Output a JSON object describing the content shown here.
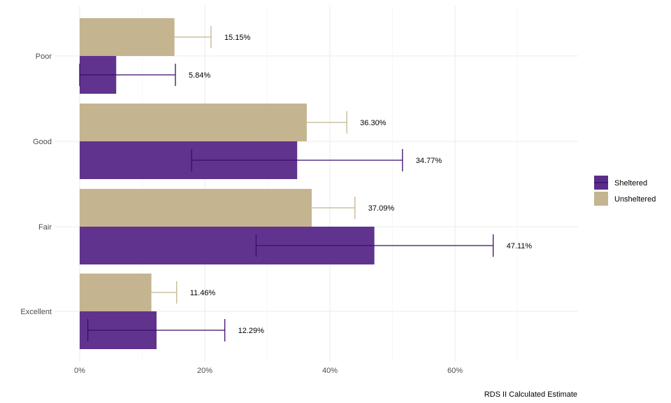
{
  "chart_data": {
    "type": "bar",
    "orientation": "horizontal",
    "categories": [
      "Poor",
      "Good",
      "Fair",
      "Excellent"
    ],
    "series": [
      {
        "name": "Unsheltered",
        "color": "#c4b48f",
        "values": [
          15.15,
          36.3,
          37.09,
          11.46
        ],
        "labels": [
          "15.15%",
          "36.30%",
          "37.09%",
          "11.46%"
        ],
        "ci_low": [
          9.2,
          29.6,
          30.0,
          7.5
        ],
        "ci_high": [
          21.0,
          42.7,
          44.0,
          15.5
        ]
      },
      {
        "name": "Sheltered",
        "color": "#5b2d8a",
        "errorbar_color": "#3a0a6e",
        "values": [
          5.84,
          34.77,
          47.11,
          12.29
        ],
        "labels": [
          "5.84%",
          "34.77%",
          "47.11%",
          "12.29%"
        ],
        "ci_low": [
          0.0,
          17.9,
          28.2,
          1.3
        ],
        "ci_high": [
          15.3,
          51.6,
          66.1,
          23.2
        ]
      }
    ],
    "xlabel": "RDS II Calculated Estimate",
    "ylabel": "",
    "xlim": [
      0,
      80
    ],
    "xticks": [
      0,
      20,
      40,
      60
    ],
    "xtick_labels": [
      "0%",
      "20%",
      "40%",
      "60%"
    ],
    "grid": true,
    "legend_position": "right",
    "legend_order": [
      "Sheltered",
      "Unsheltered"
    ]
  }
}
